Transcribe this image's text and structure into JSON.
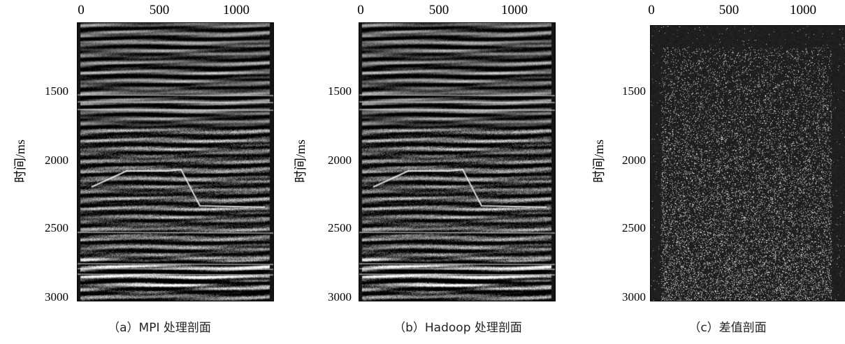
{
  "ylabel": "时间/ms",
  "chart_data": [
    {
      "type": "heatmap",
      "title": "",
      "caption": "（a）MPI 处理剖面",
      "xticks": [
        "0",
        "500",
        "1000"
      ],
      "yticks": [
        "1500",
        "2000",
        "2500",
        "3000"
      ],
      "ylabel": "时间/ms",
      "xlim": [
        0,
        1250
      ],
      "ylim": [
        1030,
        3020
      ],
      "pattern": "seismic-section"
    },
    {
      "type": "heatmap",
      "title": "",
      "caption": "（b）Hadoop 处理剖面",
      "xticks": [
        "0",
        "500",
        "1000"
      ],
      "yticks": [
        "1500",
        "2000",
        "2500",
        "3000"
      ],
      "ylabel": "时间/ms",
      "xlim": [
        0,
        1250
      ],
      "ylim": [
        1030,
        3020
      ],
      "pattern": "seismic-section"
    },
    {
      "type": "heatmap",
      "title": "",
      "caption": "（c）差值剖面",
      "xticks": [
        "0",
        "500",
        "1000"
      ],
      "yticks": [
        "1500",
        "2000",
        "2500",
        "3000"
      ],
      "ylabel": "时间/ms",
      "xlim": [
        0,
        1250
      ],
      "ylim": [
        1030,
        3020
      ],
      "pattern": "difference-noise"
    }
  ]
}
